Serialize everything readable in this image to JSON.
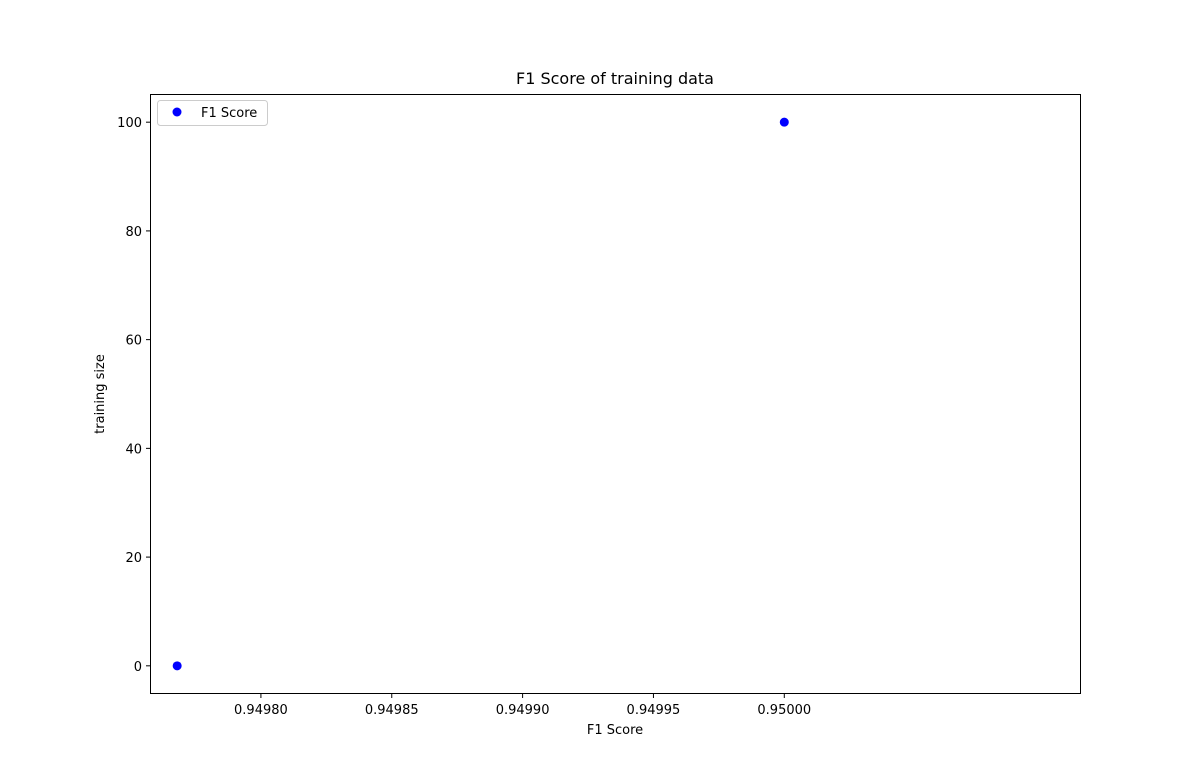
{
  "chart_data": {
    "type": "scatter",
    "title": "F1 Score of training data",
    "xlabel": "F1 Score",
    "ylabel": "training size",
    "xlim": [
      0.949758,
      0.950113
    ],
    "ylim": [
      -5,
      105
    ],
    "xticks": [
      {
        "value": 0.9498,
        "label": "0.94980"
      },
      {
        "value": 0.94985,
        "label": "0.94985"
      },
      {
        "value": 0.9499,
        "label": "0.94990"
      },
      {
        "value": 0.94995,
        "label": "0.94995"
      },
      {
        "value": 0.95,
        "label": "0.95000"
      }
    ],
    "yticks": [
      {
        "value": 0,
        "label": "0"
      },
      {
        "value": 20,
        "label": "20"
      },
      {
        "value": 40,
        "label": "40"
      },
      {
        "value": 60,
        "label": "60"
      },
      {
        "value": 80,
        "label": "80"
      },
      {
        "value": 100,
        "label": "100"
      }
    ],
    "grid": false,
    "legend": {
      "position": "top-left"
    },
    "series": [
      {
        "name": "F1 Score",
        "color": "#0000ff",
        "marker": "circle",
        "points": [
          {
            "x": 0.949768,
            "y": 0
          },
          {
            "x": 0.95,
            "y": 100
          }
        ]
      }
    ]
  }
}
